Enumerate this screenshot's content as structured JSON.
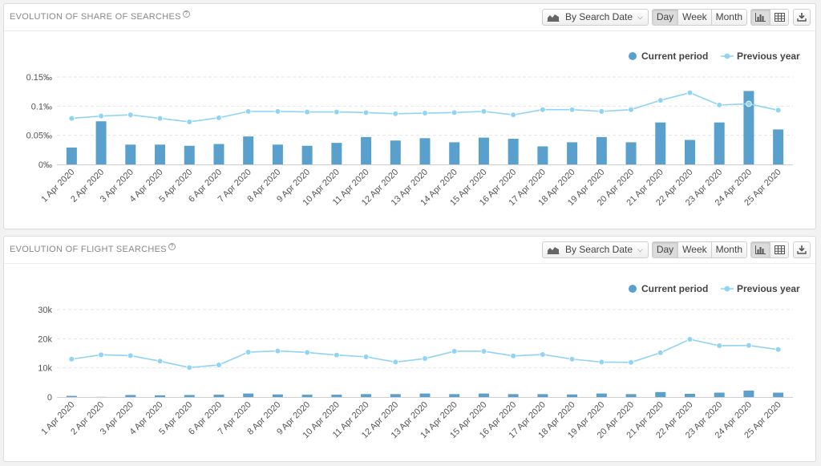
{
  "toolbar": {
    "date_mode": "By Search Date",
    "granularity": [
      "Day",
      "Week",
      "Month"
    ],
    "active_granularity": "Day"
  },
  "panels": [
    {
      "title": "EVOLUTION OF SHARE OF SEARCHES",
      "help": "?"
    },
    {
      "title": "EVOLUTION OF FLIGHT SEARCHES",
      "help": "?"
    }
  ],
  "colors": {
    "current": "#5aa0cc",
    "previous": "#8fd3f5",
    "grid": "#e6e6e6"
  },
  "chart_data": [
    {
      "type": "bar",
      "categories": [
        "1 Apr 2020",
        "2 Apr 2020",
        "3 Apr 2020",
        "4 Apr 2020",
        "5 Apr 2020",
        "6 Apr 2020",
        "7 Apr 2020",
        "8 Apr 2020",
        "9 Apr 2020",
        "10 Apr 2020",
        "11 Apr 2020",
        "12 Apr 2020",
        "13 Apr 2020",
        "14 Apr 2020",
        "15 Apr 2020",
        "16 Apr 2020",
        "17 Apr 2020",
        "18 Apr 2020",
        "19 Apr 2020",
        "20 Apr 2020",
        "21 Apr 2020",
        "22 Apr 2020",
        "23 Apr 2020",
        "24 Apr 2020",
        "25 Apr 2020"
      ],
      "series": [
        {
          "name": "Current period",
          "type": "bar",
          "values": [
            0.029,
            0.074,
            0.034,
            0.034,
            0.032,
            0.035,
            0.048,
            0.034,
            0.032,
            0.037,
            0.047,
            0.041,
            0.045,
            0.038,
            0.046,
            0.044,
            0.031,
            0.038,
            0.047,
            0.038,
            0.072,
            0.042,
            0.072,
            0.126,
            0.06
          ]
        },
        {
          "name": "Previous year",
          "type": "line",
          "values": [
            0.079,
            0.083,
            0.085,
            0.079,
            0.073,
            0.08,
            0.091,
            0.091,
            0.09,
            0.09,
            0.089,
            0.087,
            0.088,
            0.089,
            0.091,
            0.085,
            0.094,
            0.094,
            0.091,
            0.094,
            0.11,
            0.123,
            0.102,
            0.104,
            0.093
          ]
        }
      ],
      "yticks": [
        "0‰",
        "0.05‰",
        "0.1‰",
        "0.15‰"
      ],
      "ylim": [
        0,
        0.15
      ],
      "grid": true,
      "legend": "top-right"
    },
    {
      "type": "bar",
      "categories": [
        "1 Apr 2020",
        "2 Apr 2020",
        "3 Apr 2020",
        "4 Apr 2020",
        "5 Apr 2020",
        "6 Apr 2020",
        "7 Apr 2020",
        "8 Apr 2020",
        "9 Apr 2020",
        "10 Apr 2020",
        "11 Apr 2020",
        "12 Apr 2020",
        "13 Apr 2020",
        "14 Apr 2020",
        "15 Apr 2020",
        "16 Apr 2020",
        "17 Apr 2020",
        "18 Apr 2020",
        "19 Apr 2020",
        "20 Apr 2020",
        "21 Apr 2020",
        "22 Apr 2020",
        "23 Apr 2020",
        "24 Apr 2020",
        "25 Apr 2020"
      ],
      "series": [
        {
          "name": "Current period",
          "type": "bar",
          "values": [
            400,
            50,
            700,
            600,
            700,
            800,
            1200,
            900,
            800,
            800,
            1000,
            1000,
            1200,
            1000,
            1200,
            1000,
            1000,
            900,
            1200,
            1000,
            1700,
            1100,
            1500,
            2200,
            1500
          ]
        },
        {
          "name": "Previous year",
          "type": "line",
          "values": [
            13000,
            14500,
            14200,
            12300,
            10100,
            11000,
            15400,
            15800,
            15300,
            14400,
            13800,
            12000,
            13200,
            15700,
            15700,
            14100,
            14600,
            13000,
            12000,
            11900,
            15200,
            19800,
            17600,
            17700,
            16300
          ]
        }
      ],
      "yticks": [
        "0",
        "10k",
        "20k",
        "30k"
      ],
      "ylim": [
        0,
        30000
      ],
      "grid": true,
      "legend": "top-right"
    }
  ]
}
